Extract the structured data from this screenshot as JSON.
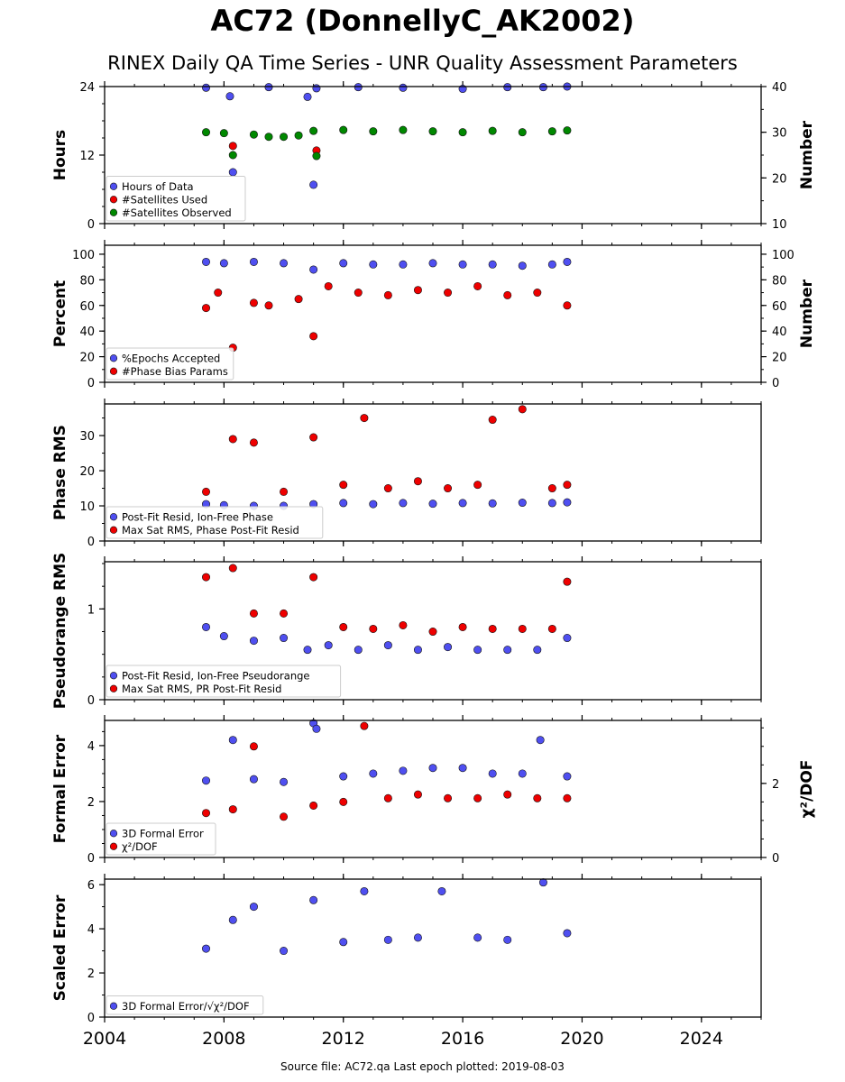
{
  "title": "AC72 (DonnellyC_AK2002)",
  "subtitle": "RINEX Daily QA Time Series - UNR Quality Assessment Parameters",
  "footer": "Source file: AC72.qa Last epoch plotted: 2019-08-03",
  "colors": {
    "blue": "#4f4ff0",
    "red": "#ee0000",
    "green": "#008800"
  },
  "chart_data": [
    {
      "type": "scatter",
      "xlim": [
        2004,
        2026
      ],
      "xticks": [
        2004,
        2008,
        2012,
        2016,
        2020,
        2024
      ],
      "ylabel": "Hours",
      "ylim": [
        0,
        24
      ],
      "yticks": [
        0,
        12,
        24
      ],
      "y2label": "Number",
      "y2lim": [
        10,
        40
      ],
      "y2ticks": [
        10,
        20,
        30,
        40
      ],
      "series": [
        {
          "name": "Hours of Data",
          "axis": "left",
          "color": "blue",
          "x": [
            2007.4,
            2008.2,
            2008.3,
            2009.5,
            2010.8,
            2011.0,
            2011.1,
            2012.5,
            2014.0,
            2016.0,
            2017.5,
            2018.7,
            2019.5
          ],
          "y": [
            23.8,
            22.3,
            9.0,
            23.9,
            22.2,
            6.8,
            23.7,
            23.9,
            23.8,
            23.6,
            23.9,
            23.9,
            24.0
          ]
        },
        {
          "name": "#Satellites Used",
          "axis": "right",
          "color": "red",
          "x": [
            2008.3,
            2011.1
          ],
          "y": [
            27,
            26
          ]
        },
        {
          "name": "#Satellites Observed",
          "axis": "right",
          "color": "green",
          "x": [
            2007.4,
            2008.0,
            2008.3,
            2009.0,
            2009.5,
            2010.0,
            2010.5,
            2011.0,
            2011.1,
            2012.0,
            2013.0,
            2014.0,
            2015.0,
            2016.0,
            2017.0,
            2018.0,
            2019.0,
            2019.5
          ],
          "y": [
            30,
            29.8,
            25,
            29.5,
            29.0,
            29.0,
            29.3,
            30.3,
            24.8,
            30.5,
            30.2,
            30.5,
            30.2,
            30.0,
            30.3,
            30.0,
            30.2,
            30.4
          ]
        }
      ],
      "legend": "lower-left"
    },
    {
      "type": "scatter",
      "xlim": [
        2004,
        2026
      ],
      "xticks": [
        2004,
        2008,
        2012,
        2016,
        2020,
        2024
      ],
      "ylabel": "Percent",
      "ylim": [
        0,
        107
      ],
      "yticks": [
        0,
        20,
        40,
        60,
        80,
        100
      ],
      "y2label": "Number",
      "y2lim": [
        0,
        107
      ],
      "y2ticks": [
        0,
        20,
        40,
        60,
        80,
        100
      ],
      "series": [
        {
          "name": "%Epochs Accepted",
          "axis": "left",
          "color": "blue",
          "x": [
            2007.4,
            2008.0,
            2009.0,
            2010.0,
            2011.0,
            2012.0,
            2013.0,
            2014.0,
            2015.0,
            2016.0,
            2017.0,
            2018.0,
            2019.0,
            2019.5
          ],
          "y": [
            94,
            93,
            94,
            93,
            88,
            93,
            92,
            92,
            93,
            92,
            92,
            91,
            92,
            94
          ]
        },
        {
          "name": "#Phase Bias Params",
          "axis": "right",
          "color": "red",
          "x": [
            2007.4,
            2007.8,
            2008.3,
            2009.0,
            2009.5,
            2010.5,
            2011.0,
            2011.5,
            2012.5,
            2013.5,
            2014.5,
            2015.5,
            2016.5,
            2017.5,
            2018.5,
            2019.5
          ],
          "y": [
            58,
            70,
            27,
            62,
            60,
            65,
            36,
            75,
            70,
            68,
            72,
            70,
            75,
            68,
            70,
            60
          ]
        }
      ],
      "legend": "lower-left"
    },
    {
      "type": "scatter",
      "xlim": [
        2004,
        2026
      ],
      "xticks": [
        2004,
        2008,
        2012,
        2016,
        2020,
        2024
      ],
      "ylabel": "Phase RMS",
      "ylim": [
        0,
        39
      ],
      "yticks": [
        0,
        10,
        20,
        30
      ],
      "series": [
        {
          "name": "Post-Fit Resid, Ion-Free Phase",
          "axis": "left",
          "color": "blue",
          "x": [
            2007.4,
            2008.0,
            2009.0,
            2010.0,
            2011.0,
            2012.0,
            2013.0,
            2014.0,
            2015.0,
            2016.0,
            2017.0,
            2018.0,
            2019.0,
            2019.5
          ],
          "y": [
            10.5,
            10.2,
            10.0,
            10.0,
            10.5,
            10.8,
            10.5,
            10.8,
            10.6,
            10.8,
            10.7,
            10.9,
            10.8,
            11.0
          ]
        },
        {
          "name": "Max Sat RMS, Phase Post-Fit Resid",
          "axis": "left",
          "color": "red",
          "x": [
            2007.4,
            2008.3,
            2009.0,
            2010.0,
            2011.0,
            2012.0,
            2012.7,
            2013.5,
            2014.5,
            2015.5,
            2016.5,
            2017.0,
            2018.0,
            2019.0,
            2019.5
          ],
          "y": [
            14,
            29,
            28,
            14,
            29.5,
            16,
            35,
            15,
            17,
            15,
            16,
            34.5,
            37.5,
            15,
            16
          ]
        }
      ],
      "legend": "lower-left"
    },
    {
      "type": "scatter",
      "xlim": [
        2004,
        2026
      ],
      "xticks": [
        2004,
        2008,
        2012,
        2016,
        2020,
        2024
      ],
      "ylabel": "Pseudorange RMS",
      "ylim": [
        0,
        1.52
      ],
      "yticks": [
        0,
        1
      ],
      "series": [
        {
          "name": "Post-Fit Resid, Ion-Free Pseudorange",
          "axis": "left",
          "color": "blue",
          "x": [
            2007.4,
            2008.0,
            2009.0,
            2010.0,
            2010.8,
            2011.5,
            2012.5,
            2013.5,
            2014.5,
            2015.5,
            2016.5,
            2017.5,
            2018.5,
            2019.5
          ],
          "y": [
            0.8,
            0.7,
            0.65,
            0.68,
            0.55,
            0.6,
            0.55,
            0.6,
            0.55,
            0.58,
            0.55,
            0.55,
            0.55,
            0.68
          ]
        },
        {
          "name": "Max Sat RMS, PR Post-Fit Resid",
          "axis": "left",
          "color": "red",
          "x": [
            2007.4,
            2008.3,
            2009.0,
            2010.0,
            2011.0,
            2012.0,
            2013.0,
            2014.0,
            2015.0,
            2016.0,
            2017.0,
            2018.0,
            2019.0,
            2019.5
          ],
          "y": [
            1.35,
            1.45,
            0.95,
            0.95,
            1.35,
            0.8,
            0.78,
            0.82,
            0.75,
            0.8,
            0.78,
            0.78,
            0.78,
            1.3
          ]
        }
      ],
      "legend": "lower-left"
    },
    {
      "type": "scatter",
      "xlim": [
        2004,
        2026
      ],
      "xticks": [
        2004,
        2008,
        2012,
        2016,
        2020,
        2024
      ],
      "ylabel": "Formal Error",
      "ylim": [
        0,
        4.9
      ],
      "yticks": [
        0,
        2,
        4
      ],
      "y2label": "χ²/DOF",
      "y2lim": [
        0,
        3.7
      ],
      "y2ticks": [
        0,
        2
      ],
      "series": [
        {
          "name": "3D Formal Error",
          "axis": "left",
          "color": "blue",
          "x": [
            2007.4,
            2008.3,
            2009.0,
            2010.0,
            2011.0,
            2011.1,
            2012.0,
            2013.0,
            2014.0,
            2015.0,
            2016.0,
            2017.0,
            2018.0,
            2018.6,
            2019.5
          ],
          "y": [
            2.75,
            4.2,
            2.8,
            2.7,
            4.8,
            4.6,
            2.9,
            3.0,
            3.1,
            3.2,
            3.2,
            3.0,
            3.0,
            4.2,
            2.9
          ]
        },
        {
          "name": "χ²/DOF",
          "axis": "right",
          "color": "red",
          "x": [
            2007.4,
            2008.3,
            2009.0,
            2010.0,
            2011.0,
            2012.0,
            2012.7,
            2013.5,
            2014.5,
            2015.5,
            2016.5,
            2017.5,
            2018.5,
            2019.5
          ],
          "y": [
            1.2,
            1.3,
            3.0,
            1.1,
            1.4,
            1.5,
            3.55,
            1.6,
            1.7,
            1.6,
            1.6,
            1.7,
            1.6,
            1.6
          ]
        }
      ],
      "legend": "lower-left"
    },
    {
      "type": "scatter",
      "xlim": [
        2004,
        2026
      ],
      "xticks": [
        2004,
        2008,
        2012,
        2016,
        2020,
        2024
      ],
      "ylabel": "Scaled Error",
      "ylim": [
        0,
        6.25
      ],
      "yticks": [
        0,
        2,
        4,
        6
      ],
      "series": [
        {
          "name": "3D Formal Error/√χ²/DOF",
          "axis": "left",
          "color": "blue",
          "x": [
            2007.4,
            2008.3,
            2009.0,
            2010.0,
            2011.0,
            2012.0,
            2012.7,
            2013.5,
            2014.5,
            2015.3,
            2016.5,
            2017.5,
            2018.7,
            2019.5
          ],
          "y": [
            3.1,
            4.4,
            5.0,
            3.0,
            5.3,
            3.4,
            5.7,
            3.5,
            3.6,
            5.7,
            3.6,
            3.5,
            6.1,
            3.8
          ]
        }
      ],
      "legend": "lower-left"
    }
  ]
}
